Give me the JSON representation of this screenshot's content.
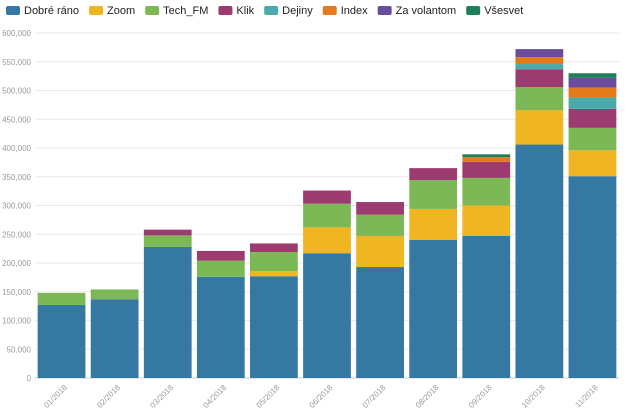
{
  "chart_data": {
    "type": "bar",
    "stacked": true,
    "title": "",
    "xlabel": "",
    "ylabel": "",
    "ylim": [
      0,
      600000
    ],
    "yticks": [
      0,
      50000,
      100000,
      150000,
      200000,
      250000,
      300000,
      350000,
      400000,
      450000,
      500000,
      550000,
      600000
    ],
    "ytick_labels": [
      "0",
      "50,000",
      "100,000",
      "150,000",
      "200,000",
      "250,000",
      "300,000",
      "350,000",
      "400,000",
      "450,000",
      "500,000",
      "550,000",
      "600,000"
    ],
    "grid": true,
    "legend_position": "top",
    "categories": [
      "01/2018",
      "02/2018",
      "03/2018",
      "04/2018",
      "05/2018",
      "06/2018",
      "07/2018",
      "08/2018",
      "09/2018",
      "10/2018",
      "11/2018"
    ],
    "series": [
      {
        "name": "Dobré ráno",
        "color": "#3579a3",
        "values": [
          127000,
          137000,
          228000,
          176000,
          177000,
          217000,
          193000,
          240000,
          247000,
          406000,
          351000
        ]
      },
      {
        "name": "Zoom",
        "color": "#f0b522",
        "values": [
          0,
          0,
          0,
          0,
          9000,
          45000,
          54000,
          54000,
          53000,
          60000,
          45000
        ]
      },
      {
        "name": "Tech_FM",
        "color": "#7db857",
        "values": [
          21000,
          17000,
          20000,
          28000,
          33000,
          41000,
          37000,
          50000,
          48000,
          40000,
          39000
        ]
      },
      {
        "name": "Klik",
        "color": "#9c3b6f",
        "values": [
          0,
          0,
          10000,
          17000,
          15000,
          23000,
          22000,
          21000,
          28000,
          31000,
          33000
        ]
      },
      {
        "name": "Dejiny",
        "color": "#4aabaa",
        "values": [
          0,
          0,
          0,
          0,
          0,
          0,
          0,
          0,
          0,
          9000,
          20000
        ]
      },
      {
        "name": "Index",
        "color": "#e37b1c",
        "values": [
          0,
          0,
          0,
          0,
          0,
          0,
          0,
          0,
          8000,
          12000,
          17000
        ]
      },
      {
        "name": "Za volantom",
        "color": "#6a4c9c",
        "values": [
          0,
          0,
          0,
          0,
          0,
          0,
          0,
          0,
          0,
          14000,
          17000
        ]
      },
      {
        "name": "Všesvet",
        "color": "#1e7f59",
        "values": [
          0,
          0,
          0,
          0,
          0,
          0,
          0,
          0,
          5000,
          0,
          8000
        ]
      }
    ]
  }
}
